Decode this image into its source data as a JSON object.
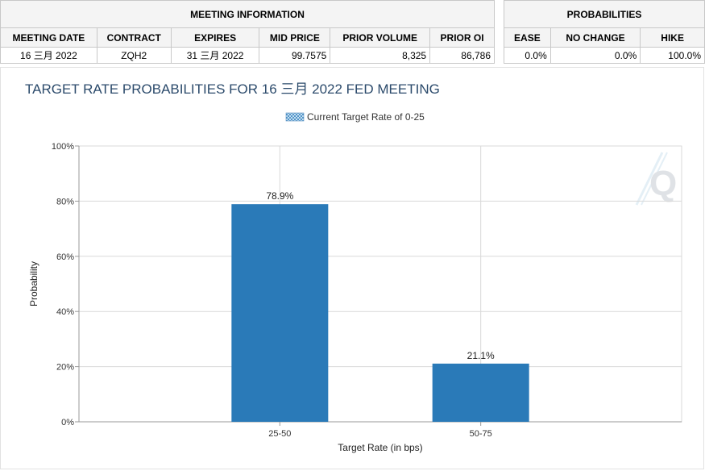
{
  "meeting_info": {
    "group_header": "MEETING INFORMATION",
    "columns": [
      "MEETING DATE",
      "CONTRACT",
      "EXPIRES",
      "MID PRICE",
      "PRIOR VOLUME",
      "PRIOR OI"
    ],
    "row": {
      "meeting_date": "16 三月 2022",
      "contract": "ZQH2",
      "expires": "31 三月 2022",
      "mid_price": "99.7575",
      "prior_volume": "8,325",
      "prior_oi": "86,786"
    }
  },
  "probabilities": {
    "group_header": "PROBABILITIES",
    "columns": [
      "EASE",
      "NO CHANGE",
      "HIKE"
    ],
    "row": {
      "ease": "0.0%",
      "no_change": "0.0%",
      "hike": "100.0%"
    }
  },
  "colors": {
    "bar": "#2a7ab8",
    "title": "#2b4a6b",
    "grid": "#d9d9d9"
  },
  "chart_data": {
    "type": "bar",
    "title": "TARGET RATE PROBABILITIES FOR 16 三月 2022 FED MEETING",
    "legend": "Current Target Rate of 0-25",
    "legend_placement": "top-center",
    "categories": [
      "25-50",
      "50-75"
    ],
    "values": [
      78.9,
      21.1
    ],
    "data_labels": [
      "78.9%",
      "21.1%"
    ],
    "xlabel": "Target Rate (in bps)",
    "ylabel": "Probability",
    "ylim": [
      0,
      100
    ],
    "yticks": [
      "0%",
      "20%",
      "40%",
      "60%",
      "80%",
      "100%"
    ],
    "grid": true
  }
}
